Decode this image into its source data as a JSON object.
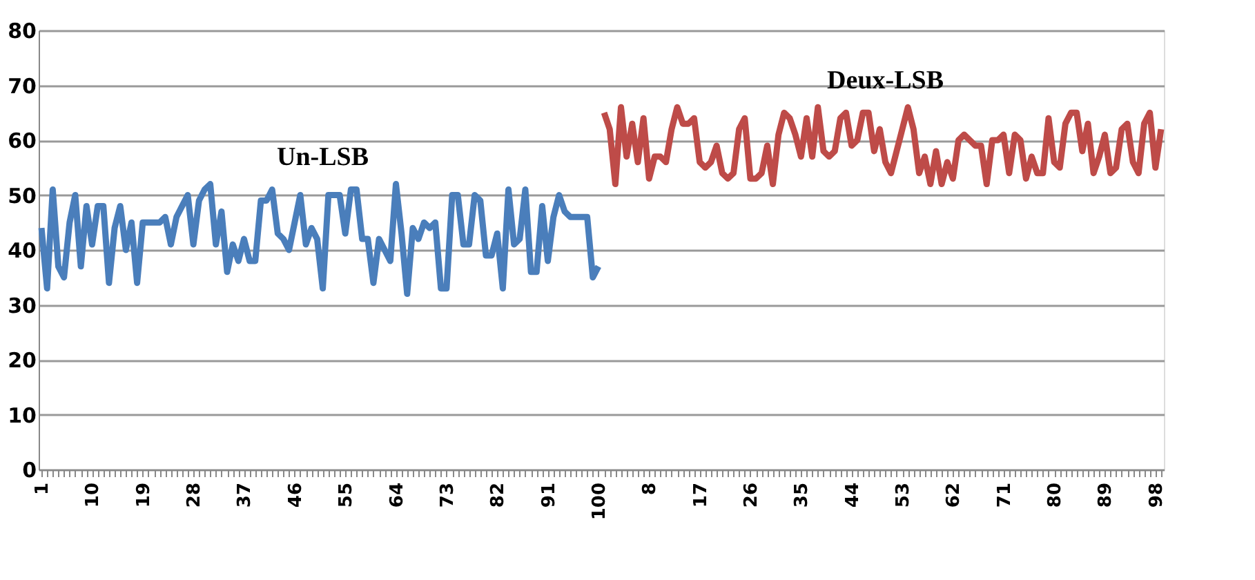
{
  "chart_data": {
    "type": "line",
    "categories": [
      "1",
      null,
      null,
      null,
      null,
      null,
      null,
      null,
      null,
      "10",
      null,
      null,
      null,
      null,
      null,
      null,
      null,
      null,
      "19",
      null,
      null,
      null,
      null,
      null,
      null,
      null,
      null,
      "28",
      null,
      null,
      null,
      null,
      null,
      null,
      null,
      null,
      "37",
      null,
      null,
      null,
      null,
      null,
      null,
      null,
      null,
      "46",
      null,
      null,
      null,
      null,
      null,
      null,
      null,
      null,
      "55",
      null,
      null,
      null,
      null,
      null,
      null,
      null,
      null,
      "64",
      null,
      null,
      null,
      null,
      null,
      null,
      null,
      null,
      "73",
      null,
      null,
      null,
      null,
      null,
      null,
      null,
      null,
      "82",
      null,
      null,
      null,
      null,
      null,
      null,
      null,
      null,
      "91",
      null,
      null,
      null,
      null,
      null,
      null,
      null,
      null,
      "100",
      null,
      null,
      null,
      null,
      null,
      null,
      null,
      null,
      "8",
      null,
      null,
      null,
      null,
      null,
      null,
      null,
      null,
      "17",
      null,
      null,
      null,
      null,
      null,
      null,
      null,
      null,
      "26",
      null,
      null,
      null,
      null,
      null,
      null,
      null,
      null,
      "35",
      null,
      null,
      null,
      null,
      null,
      null,
      null,
      null,
      "44",
      null,
      null,
      null,
      null,
      null,
      null,
      null,
      null,
      "53",
      null,
      null,
      null,
      null,
      null,
      null,
      null,
      null,
      "62",
      null,
      null,
      null,
      null,
      null,
      null,
      null,
      null,
      "71",
      null,
      null,
      null,
      null,
      null,
      null,
      null,
      null,
      "80",
      null,
      null,
      null,
      null,
      null,
      null,
      null,
      null,
      "89",
      null,
      null,
      null,
      null,
      null,
      null,
      null,
      null,
      "98",
      null
    ],
    "series": [
      {
        "name": "Un-LSB",
        "color": "#4a7ebb",
        "values": [
          44,
          33,
          51,
          37,
          35,
          45,
          50,
          37,
          48,
          41,
          48,
          48,
          34,
          44,
          48,
          40,
          45,
          34,
          45,
          45,
          45,
          45,
          46,
          41,
          46,
          48,
          50,
          41,
          49,
          51,
          52,
          41,
          47,
          36,
          41,
          38,
          42,
          38,
          38,
          49,
          49,
          51,
          43,
          42,
          40,
          45,
          50,
          41,
          44,
          42,
          33,
          50,
          50,
          50,
          43,
          51,
          51,
          42,
          42,
          34,
          42,
          40,
          38,
          52,
          43,
          32,
          44,
          42,
          45,
          44,
          45,
          33,
          33,
          50,
          50,
          41,
          41,
          50,
          49,
          39,
          39,
          43,
          33,
          51,
          41,
          42,
          51,
          36,
          36,
          48,
          38,
          46,
          50,
          47,
          46,
          46,
          46,
          46,
          35,
          37,
          null,
          null,
          null,
          null,
          null,
          null,
          null,
          null,
          null,
          null,
          null,
          null,
          null,
          null,
          null,
          null,
          null,
          null,
          null,
          null,
          null,
          null,
          null,
          null,
          null,
          null,
          null,
          null,
          null,
          null,
          null,
          null,
          null,
          null,
          null,
          null,
          null,
          null,
          null,
          null,
          null,
          null,
          null,
          null,
          null,
          null,
          null,
          null,
          null,
          null,
          null,
          null,
          null,
          null,
          null,
          null,
          null,
          null,
          null,
          null,
          null,
          null,
          null,
          null,
          null,
          null,
          null,
          null,
          null,
          null,
          null,
          null,
          null,
          null,
          null,
          null,
          null,
          null,
          null,
          null,
          null,
          null,
          null,
          null,
          null,
          null,
          null,
          null,
          null,
          null,
          null,
          null,
          null,
          null,
          null,
          null,
          null,
          null,
          null,
          null
        ]
      },
      {
        "name": "Deux-LSB",
        "color": "#be4b48",
        "values": [
          null,
          null,
          null,
          null,
          null,
          null,
          null,
          null,
          null,
          null,
          null,
          null,
          null,
          null,
          null,
          null,
          null,
          null,
          null,
          null,
          null,
          null,
          null,
          null,
          null,
          null,
          null,
          null,
          null,
          null,
          null,
          null,
          null,
          null,
          null,
          null,
          null,
          null,
          null,
          null,
          null,
          null,
          null,
          null,
          null,
          null,
          null,
          null,
          null,
          null,
          null,
          null,
          null,
          null,
          null,
          null,
          null,
          null,
          null,
          null,
          null,
          null,
          null,
          null,
          null,
          null,
          null,
          null,
          null,
          null,
          null,
          null,
          null,
          null,
          null,
          null,
          null,
          null,
          null,
          null,
          null,
          null,
          null,
          null,
          null,
          null,
          null,
          null,
          null,
          null,
          null,
          null,
          null,
          null,
          null,
          null,
          null,
          null,
          null,
          null,
          65,
          62,
          52,
          66,
          57,
          63,
          56,
          64,
          53,
          57,
          57,
          56,
          62,
          66,
          63,
          63,
          64,
          56,
          55,
          56,
          59,
          54,
          53,
          54,
          62,
          64,
          53,
          53,
          54,
          59,
          52,
          61,
          65,
          64,
          61,
          57,
          64,
          57,
          66,
          58,
          57,
          58,
          64,
          65,
          59,
          60,
          65,
          65,
          58,
          62,
          56,
          54,
          58,
          62,
          66,
          62,
          54,
          57,
          52,
          58,
          52,
          56,
          53,
          60,
          61,
          60,
          59,
          59,
          52,
          60,
          60,
          61,
          54,
          61,
          60,
          53,
          57,
          54,
          54,
          64,
          56,
          55,
          63,
          65,
          65,
          58,
          63,
          54,
          57,
          61,
          54,
          55,
          62,
          63,
          56,
          54,
          63,
          65,
          55,
          62
        ]
      }
    ],
    "ylim": [
      0,
      80
    ],
    "yticks": [
      0,
      10,
      20,
      30,
      40,
      50,
      60,
      70,
      80
    ],
    "grid": "y",
    "legend": false,
    "marker": "none",
    "line_style": "solid"
  }
}
